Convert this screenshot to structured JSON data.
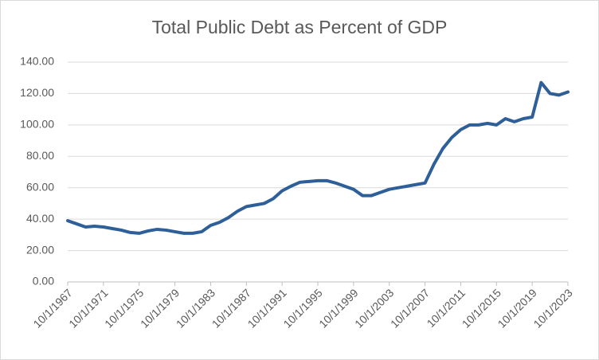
{
  "chart_data": {
    "type": "line",
    "title": "Total Public Debt as Percent of GDP",
    "categories": [
      "10/1/1967",
      null,
      null,
      null,
      "10/1/1971",
      null,
      null,
      null,
      "10/1/1975",
      null,
      null,
      null,
      "10/1/1979",
      null,
      null,
      null,
      "10/1/1983",
      null,
      null,
      null,
      "10/1/1987",
      null,
      null,
      null,
      "10/1/1991",
      null,
      null,
      null,
      "10/1/1995",
      null,
      null,
      null,
      "10/1/1999",
      null,
      null,
      null,
      "10/1/2003",
      null,
      null,
      null,
      "10/1/2007",
      null,
      null,
      null,
      "10/1/2011",
      null,
      null,
      null,
      "10/1/2015",
      null,
      null,
      null,
      "10/1/2019",
      null,
      null,
      null,
      "10/1/2023"
    ],
    "series": [
      {
        "color": "#2e5f99",
        "values": [
          39,
          37,
          35,
          35.5,
          35,
          34,
          33,
          31.5,
          31,
          32.5,
          33.5,
          33,
          32,
          31,
          31,
          32,
          36,
          38,
          41,
          45,
          48,
          49,
          50,
          53,
          58,
          61,
          63.5,
          64,
          64.5,
          64.5,
          63,
          61,
          59,
          55,
          55,
          57,
          59,
          60,
          61,
          62,
          63,
          75,
          85,
          92,
          97,
          100,
          100,
          101,
          100,
          104,
          102,
          104,
          105,
          127,
          120,
          119,
          121
        ]
      }
    ],
    "ylim": [
      0,
      140
    ],
    "yticks": [
      {
        "value": 0,
        "label": "0.00"
      },
      {
        "value": 20,
        "label": "20.00"
      },
      {
        "value": 40,
        "label": "40.00"
      },
      {
        "value": 60,
        "label": "60.00"
      },
      {
        "value": 80,
        "label": "80.00"
      },
      {
        "value": 100,
        "label": "100.00"
      },
      {
        "value": 120,
        "label": "120.00"
      },
      {
        "value": 140,
        "label": "140.00"
      }
    ],
    "grid": true
  }
}
